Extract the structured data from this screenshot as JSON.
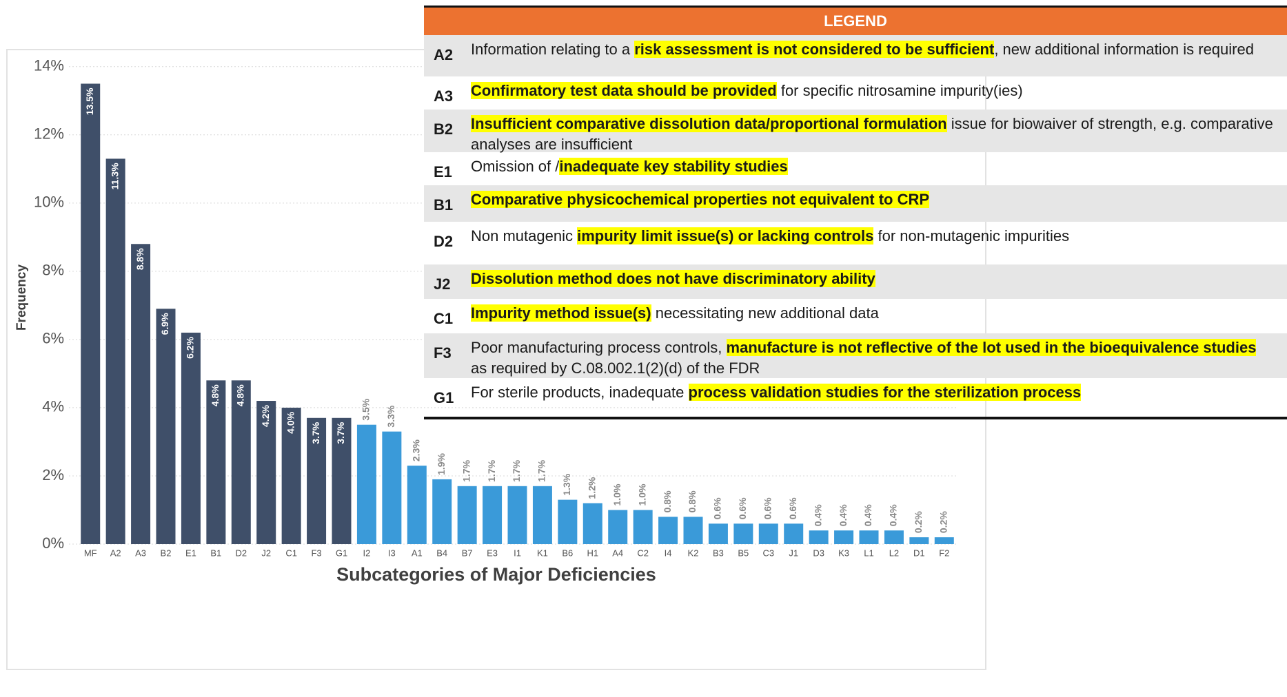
{
  "chart_data": {
    "type": "bar",
    "xlabel": "Subcategories of Major Deficiencies",
    "ylabel": "Frequency",
    "categories": [
      "MF",
      "A2",
      "A3",
      "B2",
      "E1",
      "B1",
      "D2",
      "J2",
      "C1",
      "F3",
      "G1",
      "I2",
      "I3",
      "A1",
      "B4",
      "B7",
      "E3",
      "I1",
      "K1",
      "B6",
      "H1",
      "A4",
      "C2",
      "I4",
      "K2",
      "B3",
      "B5",
      "C3",
      "J1",
      "D3",
      "K3",
      "L1",
      "L2",
      "D1",
      "F2"
    ],
    "values": [
      13.5,
      11.3,
      8.8,
      6.9,
      6.2,
      4.8,
      4.8,
      4.2,
      4.0,
      3.7,
      3.7,
      3.5,
      3.3,
      2.3,
      1.9,
      1.7,
      1.7,
      1.7,
      1.7,
      1.3,
      1.2,
      1.0,
      1.0,
      0.8,
      0.8,
      0.6,
      0.6,
      0.6,
      0.6,
      0.4,
      0.4,
      0.4,
      0.4,
      0.2,
      0.2
    ],
    "value_labels": [
      "13.5%",
      "11.3%",
      "8.8%",
      "6.9%",
      "6.2%",
      "4.8%",
      "4.8%",
      "4.2%",
      "4.0%",
      "3.7%",
      "3.7%",
      "3.5%",
      "3.3%",
      "2.3%",
      "1.9%",
      "1.7%",
      "1.7%",
      "1.7%",
      "1.7%",
      "1.3%",
      "1.2%",
      "1.0%",
      "1.0%",
      "0.8%",
      "0.8%",
      "0.6%",
      "0.6%",
      "0.6%",
      "0.6%",
      "0.4%",
      "0.4%",
      "0.4%",
      "0.4%",
      "0.2%",
      "0.2%"
    ],
    "colors": [
      "#3f4f69",
      "#3f4f69",
      "#3f4f69",
      "#3f4f69",
      "#3f4f69",
      "#3f4f69",
      "#3f4f69",
      "#3f4f69",
      "#3f4f69",
      "#3f4f69",
      "#3f4f69",
      "#3a9ad9",
      "#3a9ad9",
      "#3a9ad9",
      "#3a9ad9",
      "#3a9ad9",
      "#3a9ad9",
      "#3a9ad9",
      "#3a9ad9",
      "#3a9ad9",
      "#3a9ad9",
      "#3a9ad9",
      "#3a9ad9",
      "#3a9ad9",
      "#3a9ad9",
      "#3a9ad9",
      "#3a9ad9",
      "#3a9ad9",
      "#3a9ad9",
      "#3a9ad9",
      "#3a9ad9",
      "#3a9ad9",
      "#3a9ad9",
      "#3a9ad9",
      "#3a9ad9"
    ],
    "ylim": [
      0,
      14.5
    ],
    "yticks": [
      {
        "value": 0,
        "label": "0%"
      },
      {
        "value": 2,
        "label": "2%"
      },
      {
        "value": 4,
        "label": "4%"
      },
      {
        "value": 6,
        "label": "6%"
      },
      {
        "value": 8,
        "label": "8%"
      },
      {
        "value": 10,
        "label": "10%"
      },
      {
        "value": 12,
        "label": "12%"
      },
      {
        "value": 14,
        "label": "14%"
      }
    ],
    "grid": true
  },
  "legend": {
    "title": "LEGEND",
    "rows": [
      {
        "code": "A2",
        "parts": [
          {
            "text": "Information relating to a ",
            "highlight": false
          },
          {
            "text": "risk assessment is not considered to be sufficient",
            "highlight": true
          },
          {
            "text": ", new additional information is required",
            "highlight": false
          }
        ]
      },
      {
        "code": "A3",
        "parts": [
          {
            "text": "Confirmatory test data should be provided",
            "highlight": true
          },
          {
            "text": " for specific nitrosamine impurity(ies)",
            "highlight": false
          }
        ]
      },
      {
        "code": "B2",
        "parts": [
          {
            "text": "Insufficient comparative dissolution data/proportional formulation",
            "highlight": true
          },
          {
            "text": " issue for biowaiver of strength, e.g. comparative analyses are insufficient",
            "highlight": false
          }
        ]
      },
      {
        "code": "E1",
        "parts": [
          {
            "text": "Omission of /",
            "highlight": false
          },
          {
            "text": "inadequate key stability studies",
            "highlight": true
          }
        ]
      },
      {
        "code": "B1",
        "parts": [
          {
            "text": "Comparative physicochemical properties not equivalent to CRP",
            "highlight": true
          }
        ]
      },
      {
        "code": "D2",
        "parts": [
          {
            "text": "Non mutagenic ",
            "highlight": false
          },
          {
            "text": "impurity limit issue(s) or lacking controls",
            "highlight": true
          },
          {
            "text": " for non-mutagenic impurities",
            "highlight": false
          }
        ]
      },
      {
        "code": "J2",
        "parts": [
          {
            "text": "Dissolution method does not have discriminatory ability",
            "highlight": true
          }
        ]
      },
      {
        "code": "C1",
        "parts": [
          {
            "text": "Impurity method issue(s)",
            "highlight": true
          },
          {
            "text": " necessitating new additional data",
            "highlight": false
          }
        ]
      },
      {
        "code": "F3",
        "parts": [
          {
            "text": "Poor manufacturing process controls, ",
            "highlight": false
          },
          {
            "text": "manufacture is not reflective of the lot used in the bioequivalence studies",
            "highlight": true
          },
          {
            "text": " as required by C.08.002.1(2)(d) of the FDR",
            "highlight": false
          }
        ]
      },
      {
        "code": "G1",
        "parts": [
          {
            "text": "For sterile products, inadequate ",
            "highlight": false
          },
          {
            "text": "process validation studies for the sterilization process",
            "highlight": true
          }
        ]
      }
    ]
  }
}
